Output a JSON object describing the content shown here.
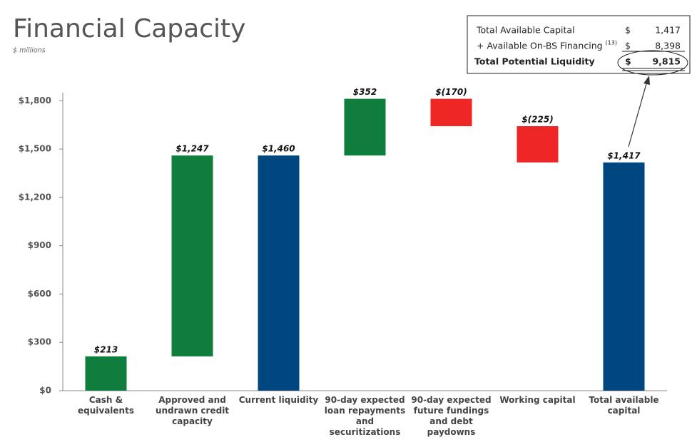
{
  "chart_data": {
    "type": "waterfall",
    "title": "Financial Capacity",
    "subtitle": "$ millions",
    "categories": [
      "Cash & equivalents",
      "Approved and undrawn credit capacity",
      "Current liquidity",
      "90-day expected loan repayments and securitizations",
      "90-day expected future fundings and debt paydowns",
      "Working capital",
      "Total available capital"
    ],
    "values": [
      213,
      1247,
      1460,
      352,
      -170,
      -225,
      1417
    ],
    "value_labels": [
      "$213",
      "$1,247",
      "$1,460",
      "$352",
      "$(170)",
      "$(225)",
      "$1,417"
    ],
    "totals": [
      false,
      false,
      true,
      false,
      false,
      false,
      true
    ],
    "colors": [
      "#0f7d3c",
      "#0f7d3c",
      "#00467f",
      "#0f7d3c",
      "#ee2726",
      "#ee2726",
      "#00467f"
    ],
    "ylim": [
      0,
      1850
    ],
    "yticks": [
      {
        "value": 0,
        "label": "$0"
      },
      {
        "value": 300,
        "label": "$300"
      },
      {
        "value": 600,
        "label": "$600"
      },
      {
        "value": 900,
        "label": "$900"
      },
      {
        "value": 1200,
        "label": "$1,200"
      },
      {
        "value": 1500,
        "label": "$1,500"
      },
      {
        "value": 1800,
        "label": "$1,800"
      }
    ],
    "grid": false
  },
  "table": {
    "rows": [
      {
        "label": "Total Available Capital",
        "currency": "$",
        "amount": "1,417"
      },
      {
        "label": "+ Available On-BS Financing",
        "note": "(13)",
        "currency": "$",
        "amount": "8,398"
      },
      {
        "label": "Total Potential Liquidity",
        "currency": "$",
        "amount": "9,815"
      }
    ]
  }
}
